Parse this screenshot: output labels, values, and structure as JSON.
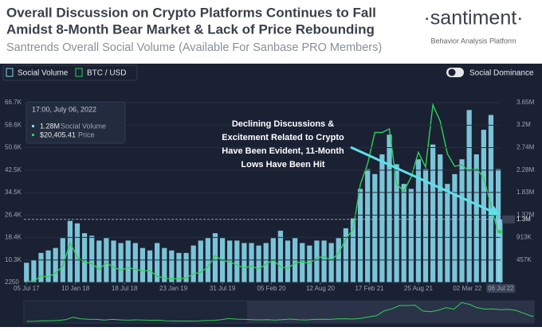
{
  "chart_data": {
    "type": "bar",
    "title": "Overall Discussion on Crypto Platforms Continues to Fall Amidst 8-Month Bear Market & Lack of Price Rebounding",
    "title_lines": [
      "Overall Discussion on Crypto Platforms Continues to Fall",
      "Amidst 8-Month Bear Market & Lack of Price Rebounding"
    ],
    "subtitle": "Santrends Overall Social Volume (Available For Sanbase PRO Members)",
    "logo": "·santiment·",
    "logo_tagline": "Behavior Analysis Platform",
    "toggle_label": "Social Dominance",
    "annotation_lines": [
      "Declining Discussions &",
      "Excitement Related to Crypto",
      "Have Been Evident, 11-Month",
      "Lows Have Been Hit"
    ],
    "x": [
      "2017-07-05",
      "2017-08-02",
      "2017-08-30",
      "2017-09-27",
      "2017-10-25",
      "2017-11-22",
      "2017-12-20",
      "2018-01-17",
      "2018-02-14",
      "2018-03-14",
      "2018-04-11",
      "2018-05-09",
      "2018-06-06",
      "2018-07-04",
      "2018-08-01",
      "2018-08-29",
      "2018-09-26",
      "2018-10-24",
      "2018-11-21",
      "2018-12-19",
      "2019-01-16",
      "2019-02-13",
      "2019-03-13",
      "2019-04-10",
      "2019-05-08",
      "2019-06-05",
      "2019-07-03",
      "2019-07-31",
      "2019-08-28",
      "2019-09-25",
      "2019-10-23",
      "2019-11-20",
      "2019-12-18",
      "2020-01-15",
      "2020-02-12",
      "2020-03-11",
      "2020-04-08",
      "2020-05-06",
      "2020-06-03",
      "2020-07-01",
      "2020-07-29",
      "2020-08-26",
      "2020-09-23",
      "2020-10-21",
      "2020-11-18",
      "2020-12-16",
      "2021-01-13",
      "2021-02-10",
      "2021-03-10",
      "2021-04-07",
      "2021-05-05",
      "2021-06-02",
      "2021-06-30",
      "2021-07-28",
      "2021-08-25",
      "2021-09-22",
      "2021-10-20",
      "2021-11-17",
      "2021-12-15",
      "2022-01-12",
      "2022-02-09",
      "2022-03-09",
      "2022-04-06",
      "2022-05-04",
      "2022-06-01",
      "2022-06-29",
      "2022-07-06"
    ],
    "series": [
      {
        "name": "Social Volume",
        "type": "bar",
        "axis": "y2",
        "color": "#86d6ea",
        "values": [
          400000,
          450000,
          600000,
          650000,
          700000,
          900000,
          1250000,
          1200000,
          1000000,
          950000,
          850000,
          900000,
          850000,
          800000,
          850000,
          800000,
          700000,
          650000,
          800000,
          700000,
          650000,
          600000,
          600000,
          750000,
          850000,
          900000,
          1000000,
          900000,
          850000,
          850000,
          800000,
          800000,
          750000,
          800000,
          900000,
          1050000,
          850000,
          900000,
          800000,
          750000,
          850000,
          850000,
          800000,
          900000,
          1100000,
          1300000,
          1900000,
          2300000,
          2200000,
          2600000,
          3000000,
          2400000,
          2000000,
          1900000,
          2500000,
          2300000,
          2800000,
          2600000,
          2000000,
          2200000,
          2500000,
          3500000,
          2600000,
          3100000,
          3400000,
          2300000,
          1280000
        ]
      },
      {
        "name": "BTC / USD",
        "type": "line",
        "color": "#2fd05a",
        "values": [
          2600,
          2700,
          4600,
          4200,
          5700,
          8100,
          16500,
          11200,
          9500,
          9100,
          6900,
          9300,
          7700,
          6600,
          7600,
          7000,
          6400,
          6500,
          4500,
          3800,
          3600,
          3600,
          3900,
          5300,
          5900,
          7800,
          11900,
          10100,
          9700,
          8500,
          7500,
          8100,
          7100,
          8800,
          10300,
          7900,
          7300,
          9200,
          9700,
          9100,
          11100,
          11500,
          10200,
          12800,
          17800,
          21300,
          37400,
          44800,
          56000,
          56000,
          57300,
          37500,
          35000,
          40000,
          48900,
          43600,
          65900,
          60100,
          48400,
          43900,
          44400,
          42000,
          43200,
          39700,
          29800,
          20100,
          20405.41
        ]
      }
    ],
    "tooltip": {
      "title": "17:00, July 06, 2022",
      "value_labels": [
        "1.28M",
        "$20,405.41"
      ],
      "price_label": "Price"
    },
    "last_label": "1.3M",
    "xlim": [
      "2017-06-25",
      "2022-07-08"
    ],
    "xticks": [
      {
        "value": "2017-07-05",
        "label": "05 Jul 17"
      },
      {
        "value": "2018-01-10",
        "label": "10 Jan 18"
      },
      {
        "value": "2018-07-18",
        "label": "18 Jul 18"
      },
      {
        "value": "2019-01-23",
        "label": "23 Jan 19"
      },
      {
        "value": "2019-07-31",
        "label": "31 Jul 19"
      },
      {
        "value": "2020-02-05",
        "label": "05 Feb 20"
      },
      {
        "value": "2020-08-12",
        "label": "12 Aug 20"
      },
      {
        "value": "2021-02-17",
        "label": "17 Feb 21"
      },
      {
        "value": "2021-08-25",
        "label": "25 Aug 21"
      },
      {
        "value": "2022-03-02",
        "label": "02 Mar 22"
      },
      {
        "value": "2022-07-06",
        "label": "06 Jul 22"
      }
    ],
    "ylim": [
      2250,
      66700
    ],
    "yticks": [
      2250,
      {
        "value": 10300,
        "label": "10.3K"
      },
      {
        "value": 18400,
        "label": "18.4K"
      },
      {
        "value": 26400,
        "label": "26.4K"
      },
      {
        "value": 34500,
        "label": "34.5K"
      },
      {
        "value": 42500,
        "label": "42.5K"
      },
      {
        "value": 50600,
        "label": "50.6K"
      },
      {
        "value": 58600,
        "label": "58.6K"
      },
      {
        "value": 66700,
        "label": "66.7K"
      }
    ],
    "y2lim": [
      0,
      3650000
    ],
    "y2ticks": [
      {
        "value": 457000,
        "label": "457K"
      },
      {
        "value": 913000,
        "label": "913K"
      },
      {
        "value": 1370000,
        "label": "1.37M"
      },
      {
        "value": 1830000,
        "label": "1.83M"
      },
      {
        "value": 2280000,
        "label": "2.28M"
      },
      {
        "value": 2740000,
        "label": "2.74M"
      },
      {
        "value": 3200000,
        "label": "3.2M"
      },
      {
        "value": 3650000,
        "label": "3.65M"
      }
    ],
    "grid": true
  }
}
